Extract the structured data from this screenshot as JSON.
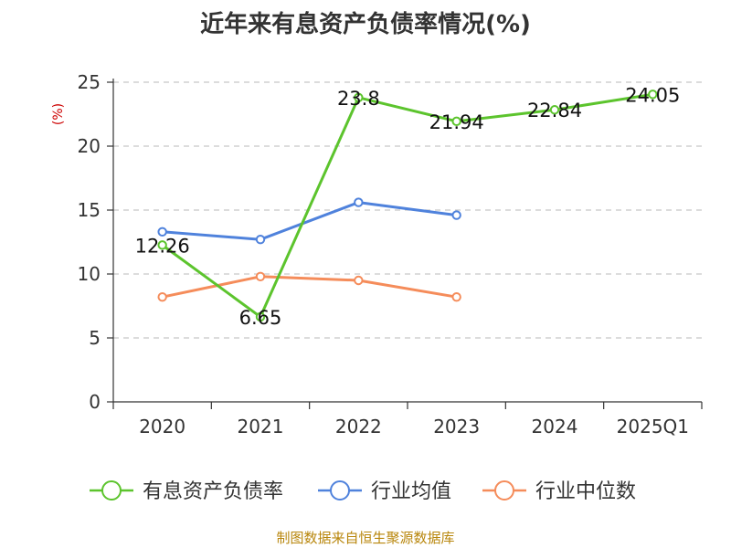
{
  "colors": {
    "series": [
      "#5cc42d",
      "#4f82dc",
      "#f58c5a"
    ],
    "grid": "#c8c8c8",
    "axis": "#333333",
    "unit": "#cc0000",
    "footer": "#b8860b"
  },
  "footer": {
    "text": "制图数据来自恒生聚源数据库"
  },
  "chart_data": {
    "type": "line",
    "title": "近年来有息资产负债率情况(%)",
    "ylabel": "(%)",
    "xlabel": "",
    "categories": [
      "2020",
      "2021",
      "2022",
      "2023",
      "2024",
      "2025Q1"
    ],
    "ylim": [
      0,
      25
    ],
    "yticks": [
      0,
      5,
      10,
      15,
      20,
      25
    ],
    "grid": true,
    "legend_position": "bottom",
    "series": [
      {
        "name": "有息资产负债率",
        "values": [
          12.26,
          6.65,
          23.8,
          21.94,
          22.84,
          24.05
        ],
        "labels": [
          "12.26",
          "6.65",
          "23.8",
          "21.94",
          "22.84",
          "24.05"
        ]
      },
      {
        "name": "行业均值",
        "values": [
          13.3,
          12.7,
          15.6,
          14.6,
          null,
          null
        ]
      },
      {
        "name": "行业中位数",
        "values": [
          8.2,
          9.8,
          9.5,
          8.2,
          null,
          null
        ]
      }
    ]
  }
}
